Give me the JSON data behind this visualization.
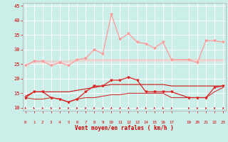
{
  "x": [
    0,
    1,
    2,
    3,
    4,
    5,
    6,
    7,
    8,
    9,
    10,
    11,
    12,
    13,
    14,
    15,
    16,
    17,
    19,
    20,
    21,
    22,
    23
  ],
  "pink_spiky": [
    24.5,
    26.0,
    26.0,
    24.5,
    25.5,
    24.5,
    26.5,
    27.0,
    30.0,
    28.5,
    42.0,
    33.5,
    35.5,
    32.5,
    32.0,
    30.5,
    32.5,
    26.5,
    26.5,
    25.5,
    33.0,
    33.0,
    32.5
  ],
  "pink_flat1": [
    24.5,
    26.0,
    26.0,
    26.0,
    26.0,
    26.0,
    26.5,
    26.5,
    26.5,
    26.5,
    26.5,
    26.5,
    26.5,
    26.5,
    26.5,
    26.5,
    26.5,
    26.5,
    26.5,
    26.5,
    26.5,
    26.5,
    26.5
  ],
  "pink_flat2": [
    24.5,
    25.5,
    25.5,
    25.5,
    25.5,
    25.5,
    26.0,
    26.0,
    26.0,
    26.0,
    26.0,
    26.0,
    26.0,
    26.0,
    26.0,
    26.0,
    26.0,
    26.0,
    26.0,
    26.0,
    26.0,
    26.0,
    26.0
  ],
  "red_spiky": [
    13.5,
    15.5,
    15.5,
    13.5,
    13.0,
    12.0,
    13.0,
    15.5,
    17.5,
    17.5,
    19.5,
    19.5,
    20.5,
    19.5,
    15.5,
    15.5,
    15.5,
    15.5,
    13.5,
    13.5,
    13.5,
    17.0,
    17.5
  ],
  "red_flat1": [
    14.0,
    15.5,
    15.5,
    15.5,
    15.5,
    15.5,
    16.0,
    16.5,
    17.0,
    17.5,
    18.0,
    18.0,
    18.0,
    18.0,
    18.0,
    18.0,
    18.0,
    17.5,
    17.5,
    17.5,
    17.5,
    17.5,
    17.5
  ],
  "red_flat2": [
    13.5,
    13.0,
    13.0,
    13.5,
    13.0,
    12.0,
    13.0,
    13.5,
    13.5,
    14.0,
    14.5,
    14.5,
    15.0,
    15.0,
    15.0,
    15.0,
    15.0,
    13.5,
    13.5,
    13.5,
    13.5,
    15.5,
    17.0
  ],
  "xlim": [
    -0.3,
    23.3
  ],
  "ylim": [
    9,
    46
  ],
  "yticks": [
    10,
    15,
    20,
    25,
    30,
    35,
    40,
    45
  ],
  "xticks": [
    0,
    1,
    2,
    3,
    4,
    5,
    6,
    7,
    8,
    9,
    10,
    11,
    12,
    13,
    14,
    15,
    16,
    17,
    19,
    20,
    21,
    22,
    23
  ],
  "xlabel": "Vent moyen/en rafales ( km/h )",
  "background_color": "#cceee8",
  "grid_color": "#ffffff",
  "tick_color": "#cc0000",
  "label_color": "#cc0000",
  "pink_spiky_color": "#ff9999",
  "pink_flat1_color": "#ffbbbb",
  "pink_flat2_color": "#ffcccc",
  "red_spiky_color": "#dd2222",
  "red_flat1_color": "#cc1111",
  "red_flat2_color": "#cc3333"
}
